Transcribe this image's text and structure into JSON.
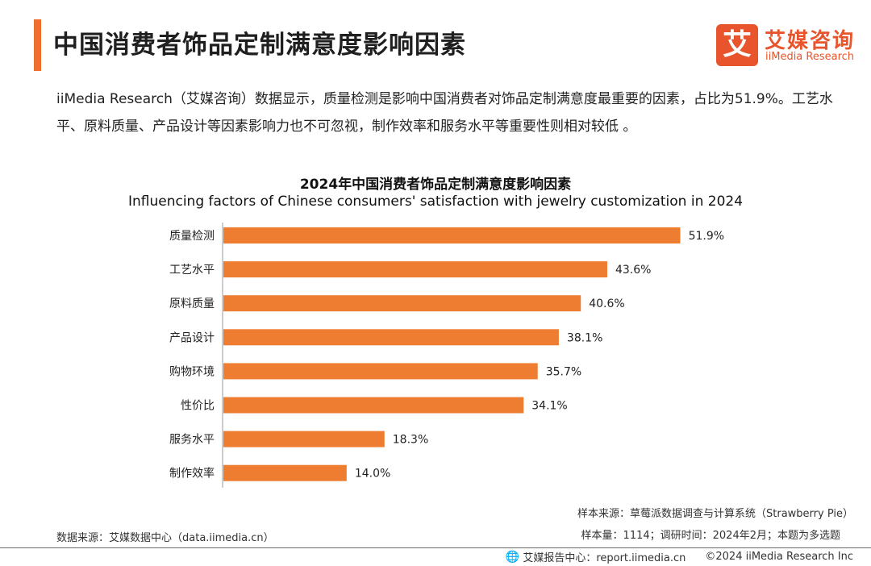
{
  "header": {
    "title": "中国消费者饰品定制满意度影响因素"
  },
  "logo": {
    "mark": "艾",
    "name_cn": "艾媒咨询",
    "name_en": "iiMedia Research"
  },
  "intro": {
    "text": "iiMedia Research（艾媒咨询）数据显示，质量检测是影响中国消费者对饰品定制满意度最重要的因素，占比为51.9%。工艺水平、原料质量、产品设计等因素影响力也不可忽视，制作效率和服务水平等重要性则相对较低 。"
  },
  "chart_data": {
    "type": "bar",
    "orientation": "horizontal",
    "title": "2024年中国消费者饰品定制满意度影响因素",
    "subtitle": "Influencing factors of Chinese consumers' satisfaction with jewelry customization in 2024",
    "categories": [
      "质量检测",
      "工艺水平",
      "原料质量",
      "产品设计",
      "购物环境",
      "性价比",
      "服务水平",
      "制作效率"
    ],
    "values": [
      51.9,
      43.6,
      40.6,
      38.1,
      35.7,
      34.1,
      18.3,
      14.0
    ],
    "value_labels": [
      "51.9%",
      "43.6%",
      "40.6%",
      "38.1%",
      "35.7%",
      "34.1%",
      "18.3%",
      "14.0%"
    ],
    "unit": "%",
    "xlim": [
      0,
      60
    ],
    "bar_color": "#ee7d31",
    "grid": false,
    "legend": "none"
  },
  "footer": {
    "sample_source": "样本来源：草莓派数据调查与计算系统（Strawberry Pie）",
    "sample_info": "样本量：1114；调研时间：2024年2月；本题为多选题",
    "data_source": "数据来源：艾媒数据中心（data.iimedia.cn）",
    "report_center": "艾媒报告中心：report.iimedia.cn",
    "copyright": "©2024  iiMedia Research  Inc"
  },
  "colors": {
    "accent": "#ee6e2d",
    "brand": "#e8542b"
  }
}
